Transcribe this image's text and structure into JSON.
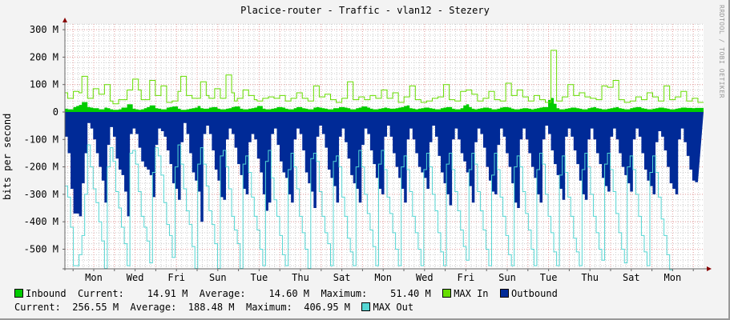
{
  "title": "Placice-router - Traffic - vlan12 - Stezery",
  "watermark": "RRDTOOL / TOBI OETIKER",
  "colors": {
    "inbound": "#00cc00",
    "max_in": "#66dd00",
    "outbound": "#002a97",
    "max_out": "#55d6d3",
    "grid_major": "#e8a0a0",
    "grid_minor": "#cccccc",
    "axis": "#666666",
    "arrow": "#880000"
  },
  "legend": {
    "inbound_label": "Inbound",
    "inbound_stats": "  Current:    14.91 M  Average:    14.60 M  Maximum:    51.40 M",
    "max_in_label": "MAX In",
    "outbound_label": "Outbound",
    "outbound_stats": "Current:  256.55 M  Average:  188.48 M  Maximum:  406.95 M",
    "max_out_label": "MAX Out"
  },
  "chart_data": {
    "type": "area",
    "title": "Placice-router - Traffic - vlan12 - Stezery",
    "xlabel": "",
    "ylabel": "bits per second",
    "ylim": [
      -575,
      320
    ],
    "yticks": [
      300,
      200,
      100,
      0,
      -100,
      -200,
      -300,
      -400,
      -500
    ],
    "ytick_labels": [
      "300 M",
      "200 M",
      "100 M",
      "0",
      "-100 M",
      "-200 M",
      "-300 M",
      "-400 M",
      "-500 M"
    ],
    "x_tick_labels": [
      "Mon",
      "Wed",
      "Fri",
      "Sun",
      "Tue",
      "Thu",
      "Sat",
      "Mon",
      "Wed",
      "Fri",
      "Sun",
      "Tue",
      "Thu",
      "Sat",
      "Mon"
    ],
    "grid": true,
    "legend_position": "bottom",
    "units": "M bits/s",
    "series": [
      {
        "name": "Inbound",
        "stats": {
          "current": 14.91,
          "average": 14.6,
          "maximum": 51.4
        },
        "values": [
          12,
          10,
          10,
          18,
          22,
          26,
          36,
          36,
          18,
          16,
          14,
          14,
          10,
          10,
          16,
          14,
          10,
          8,
          8,
          10,
          16,
          16,
          28,
          28,
          12,
          10,
          8,
          10,
          14,
          18,
          24,
          24,
          14,
          12,
          10,
          10,
          16,
          18,
          20,
          20,
          12,
          8,
          8,
          10,
          12,
          14,
          16,
          22,
          14,
          12,
          12,
          16,
          18,
          18,
          12,
          10,
          10,
          12,
          14,
          18,
          20,
          20,
          12,
          10,
          10,
          12,
          14,
          16,
          22,
          22,
          12,
          10,
          10,
          12,
          14,
          18,
          18,
          16,
          12,
          10,
          10,
          14,
          18,
          18,
          14,
          12,
          10,
          10,
          16,
          18,
          16,
          14,
          12,
          10,
          10,
          14,
          14,
          18,
          18,
          16,
          14,
          10,
          10,
          14,
          16,
          20,
          20,
          16,
          12,
          10,
          10,
          12,
          14,
          16,
          14,
          12,
          12,
          14,
          16,
          18,
          22,
          24,
          14,
          12,
          10,
          12,
          14,
          16,
          16,
          14,
          12,
          10,
          10,
          14,
          16,
          18,
          18,
          12,
          10,
          10,
          14,
          24,
          28,
          18,
          12,
          10,
          12,
          14,
          16,
          16,
          14,
          10,
          10,
          12,
          16,
          18,
          18,
          16,
          12,
          10,
          10,
          12,
          14,
          14,
          12,
          10,
          12,
          14,
          16,
          18,
          18,
          44,
          51,
          30,
          14,
          10,
          10,
          12,
          14,
          16,
          16,
          14,
          12,
          10,
          10,
          14,
          16,
          18,
          14,
          12,
          10,
          10,
          12,
          14,
          16,
          18,
          14,
          12,
          10,
          10,
          14,
          16,
          18,
          18,
          14,
          12,
          10,
          10,
          12,
          14,
          16,
          16,
          14,
          12,
          10,
          10,
          12,
          14,
          16,
          16,
          15,
          15,
          14,
          15,
          15,
          15
        ]
      },
      {
        "name": "MAX In",
        "values": [
          70,
          50,
          50,
          75,
          75,
          70,
          130,
          130,
          50,
          50,
          85,
          85,
          65,
          65,
          100,
          100,
          40,
          30,
          30,
          45,
          45,
          45,
          80,
          80,
          120,
          120,
          80,
          45,
          45,
          45,
          115,
          115,
          60,
          60,
          95,
          95,
          35,
          35,
          40,
          40,
          75,
          130,
          130,
          60,
          60,
          50,
          50,
          50,
          110,
          110,
          60,
          50,
          50,
          85,
          85,
          50,
          50,
          135,
          135,
          70,
          40,
          50,
          50,
          80,
          80,
          60,
          60,
          45,
          40,
          40,
          50,
          50,
          55,
          55,
          50,
          50,
          60,
          60,
          40,
          40,
          50,
          50,
          70,
          70,
          50,
          50,
          40,
          40,
          95,
          95,
          55,
          55,
          65,
          65,
          45,
          45,
          35,
          35,
          50,
          50,
          110,
          110,
          45,
          45,
          55,
          55,
          45,
          45,
          60,
          60,
          50,
          50,
          80,
          80,
          50,
          50,
          70,
          70,
          35,
          35,
          55,
          55,
          95,
          95,
          45,
          45,
          35,
          35,
          40,
          40,
          50,
          50,
          55,
          55,
          100,
          100,
          45,
          45,
          40,
          40,
          75,
          75,
          80,
          80,
          65,
          65,
          40,
          40,
          50,
          50,
          75,
          75,
          45,
          45,
          40,
          40,
          105,
          105,
          60,
          60,
          80,
          80,
          55,
          55,
          40,
          40,
          60,
          60,
          45,
          45,
          35,
          35,
          225,
          225,
          40,
          40,
          55,
          55,
          100,
          100,
          60,
          60,
          70,
          70,
          55,
          55,
          50,
          50,
          45,
          45,
          95,
          95,
          90,
          90,
          115,
          115,
          45,
          45,
          35,
          35,
          40,
          40,
          55,
          55,
          45,
          45,
          70,
          70,
          55,
          55,
          40,
          40,
          95,
          95,
          45,
          45,
          55,
          55,
          75,
          75,
          40,
          40,
          50,
          50,
          35,
          35
        ]
      },
      {
        "name": "Outbound",
        "values": [
          -90,
          -150,
          -280,
          -370,
          -370,
          -380,
          -260,
          -150,
          -40,
          -60,
          -100,
          -150,
          -200,
          -250,
          -330,
          -120,
          -55,
          -90,
          -170,
          -210,
          -230,
          -290,
          -380,
          -80,
          -60,
          -80,
          -130,
          -180,
          -200,
          -210,
          -230,
          -310,
          -120,
          -60,
          -70,
          -90,
          -140,
          -190,
          -260,
          -280,
          -320,
          -110,
          -40,
          -80,
          -150,
          -220,
          -250,
          -290,
          -400,
          -80,
          -50,
          -80,
          -140,
          -210,
          -250,
          -310,
          -320,
          -100,
          -60,
          -80,
          -130,
          -190,
          -230,
          -280,
          -300,
          -110,
          -80,
          -100,
          -170,
          -220,
          -300,
          -360,
          -330,
          -80,
          -60,
          -120,
          -180,
          -220,
          -240,
          -300,
          -330,
          -100,
          -60,
          -80,
          -140,
          -220,
          -260,
          -290,
          -350,
          -90,
          -50,
          -80,
          -130,
          -210,
          -240,
          -270,
          -330,
          -90,
          -60,
          -110,
          -170,
          -230,
          -260,
          -280,
          -330,
          -120,
          -60,
          -80,
          -140,
          -190,
          -240,
          -280,
          -300,
          -90,
          -50,
          -90,
          -150,
          -200,
          -240,
          -280,
          -330,
          -100,
          -60,
          -100,
          -150,
          -200,
          -220,
          -240,
          -280,
          -110,
          -50,
          -90,
          -160,
          -220,
          -260,
          -300,
          -340,
          -100,
          -60,
          -100,
          -150,
          -180,
          -220,
          -270,
          -330,
          -110,
          -60,
          -80,
          -130,
          -200,
          -250,
          -290,
          -300,
          -120,
          -60,
          -90,
          -150,
          -200,
          -260,
          -330,
          -350,
          -100,
          -60,
          -100,
          -150,
          -200,
          -240,
          -300,
          -330,
          -100,
          -50,
          -80,
          -140,
          -190,
          -230,
          -280,
          -320,
          -90,
          -60,
          -90,
          -140,
          -190,
          -250,
          -300,
          -320,
          -100,
          -60,
          -100,
          -150,
          -190,
          -240,
          -270,
          -290,
          -90,
          -60,
          -100,
          -150,
          -200,
          -230,
          -260,
          -290,
          -100,
          -60,
          -90,
          -150,
          -210,
          -250,
          -270,
          -300,
          -110,
          -70,
          -90,
          -140,
          -200,
          -260,
          -280,
          -300,
          -100,
          -60,
          -110,
          -160,
          -210,
          -250,
          -256
        ]
      },
      {
        "name": "MAX Out",
        "values": [
          -270,
          -310,
          -420,
          -560,
          -560,
          -520,
          -450,
          -300,
          -120,
          -200,
          -280,
          -330,
          -400,
          -470,
          -570,
          -200,
          -130,
          -180,
          -290,
          -350,
          -420,
          -480,
          -560,
          -150,
          -140,
          -190,
          -290,
          -380,
          -420,
          -470,
          -550,
          -220,
          -130,
          -160,
          -230,
          -330,
          -410,
          -450,
          -530,
          -200,
          -120,
          -190,
          -280,
          -360,
          -410,
          -490,
          -570,
          -190,
          -130,
          -190,
          -270,
          -360,
          -410,
          -480,
          -570,
          -160,
          -140,
          -200,
          -280,
          -380,
          -430,
          -480,
          -570,
          -190,
          -160,
          -220,
          -310,
          -380,
          -430,
          -500,
          -560,
          -180,
          -140,
          -240,
          -320,
          -380,
          -450,
          -520,
          -560,
          -210,
          -150,
          -200,
          -280,
          -380,
          -440,
          -500,
          -570,
          -170,
          -150,
          -180,
          -290,
          -380,
          -440,
          -480,
          -560,
          -180,
          -160,
          -200,
          -310,
          -380,
          -460,
          -510,
          -560,
          -200,
          -140,
          -200,
          -300,
          -370,
          -430,
          -490,
          -560,
          -190,
          -140,
          -210,
          -310,
          -370,
          -440,
          -500,
          -560,
          -200,
          -160,
          -210,
          -290,
          -380,
          -440,
          -500,
          -560,
          -210,
          -150,
          -200,
          -300,
          -360,
          -440,
          -510,
          -560,
          -190,
          -150,
          -210,
          -290,
          -360,
          -430,
          -490,
          -540,
          -210,
          -150,
          -190,
          -290,
          -360,
          -430,
          -500,
          -560,
          -230,
          -150,
          -210,
          -310,
          -380,
          -450,
          -520,
          -560,
          -200,
          -160,
          -200,
          -290,
          -370,
          -430,
          -500,
          -560,
          -210,
          -150,
          -190,
          -300,
          -380,
          -440,
          -510,
          -560,
          -230,
          -160,
          -220,
          -310,
          -380,
          -460,
          -510,
          -560,
          -210,
          -150,
          -200,
          -300,
          -380,
          -440,
          -500,
          -540,
          -190,
          -150,
          -210,
          -290,
          -370,
          -440,
          -500,
          -550,
          -200,
          -160,
          -210,
          -300,
          -380,
          -450,
          -510,
          -560,
          -220,
          -160,
          -220,
          -310,
          -390,
          -450,
          -520,
          -575
        ]
      }
    ]
  }
}
